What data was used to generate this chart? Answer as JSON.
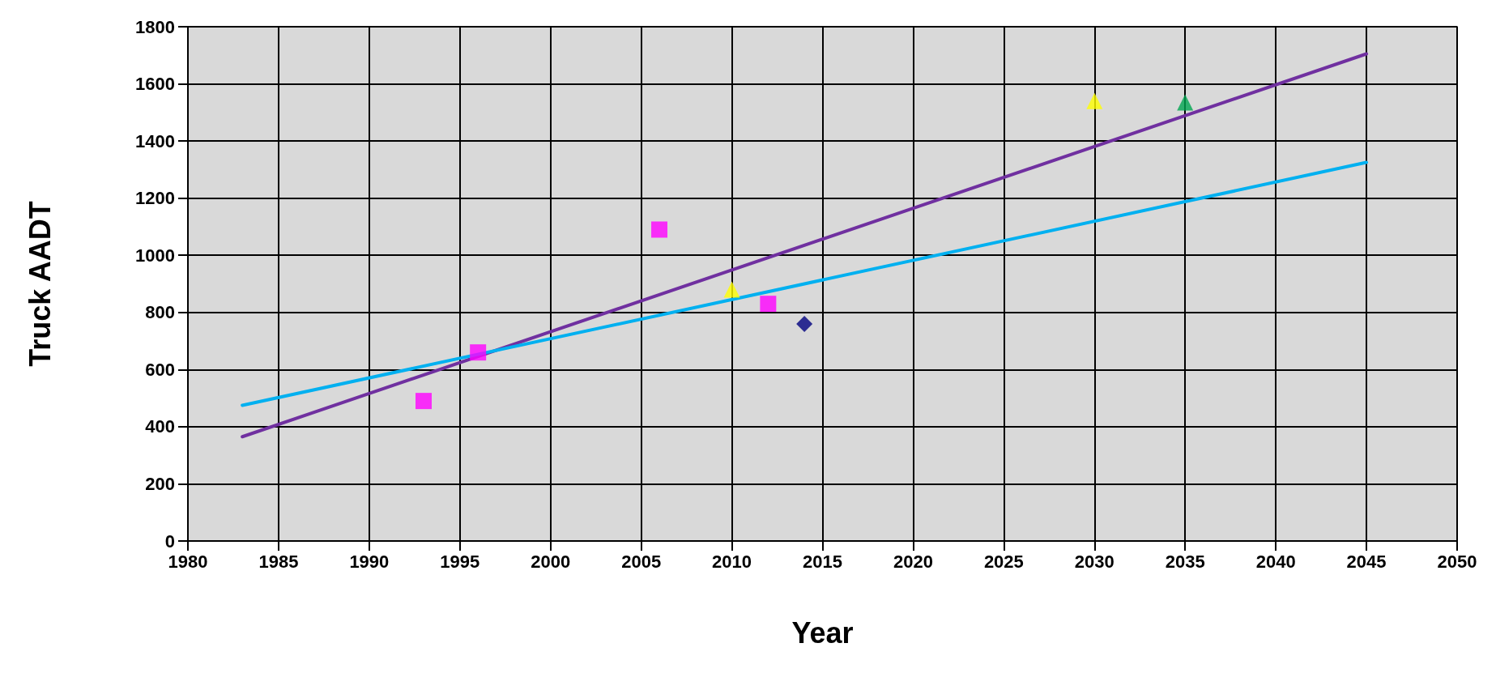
{
  "chart_data": {
    "type": "scatter",
    "xlabel": "Year",
    "ylabel": "Truck AADT",
    "xlim": [
      1980,
      2050
    ],
    "xticks": [
      1980,
      1985,
      1990,
      1995,
      2000,
      2005,
      2010,
      2015,
      2020,
      2025,
      2030,
      2035,
      2040,
      2045,
      2050
    ],
    "ylim": [
      0,
      1800
    ],
    "yticks": [
      0,
      200,
      400,
      600,
      800,
      1000,
      1200,
      1400,
      1600,
      1800
    ],
    "grid": true,
    "series": [
      {
        "type": "line",
        "marker": "none",
        "color": "#7030a0",
        "x": [
          1983,
          2045
        ],
        "values": [
          365,
          1705
        ]
      },
      {
        "type": "line",
        "marker": "none",
        "color": "#00b0f0",
        "x": [
          1983,
          2045
        ],
        "values": [
          475,
          1325
        ]
      },
      {
        "marker": "square",
        "color": "#ff00ff",
        "x": [
          1993,
          1996,
          2006,
          2012
        ],
        "values": [
          490,
          660,
          1090,
          830
        ]
      },
      {
        "marker": "triangle",
        "color": "#ffff00",
        "x": [
          2010,
          2030
        ],
        "values": [
          880,
          1540
        ]
      },
      {
        "marker": "triangle",
        "color": "#00a550",
        "x": [
          2035
        ],
        "values": [
          1535
        ]
      },
      {
        "marker": "diamond",
        "color": "#000080",
        "x": [
          2014
        ],
        "values": [
          760
        ]
      }
    ]
  }
}
